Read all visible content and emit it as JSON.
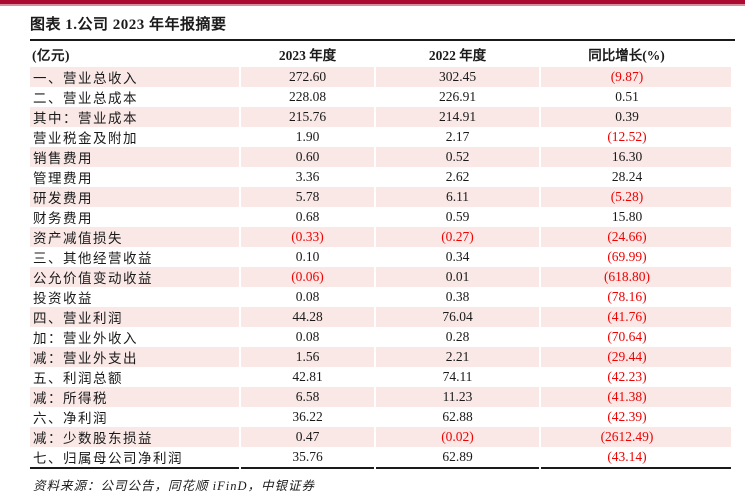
{
  "page": {
    "title": "图表 1.公司 2023 年年报摘要",
    "source_note": "资料来源：公司公告，同花顺 iFinD，中银证券"
  },
  "colors": {
    "accent_bar": "#AC0B31",
    "row_pink": "#F9E8E6",
    "negative_red": "#EE0202",
    "text_black": "#1A1A1A"
  },
  "table": {
    "headers": [
      "(亿元)",
      "2023 年度",
      "2022 年度",
      "同比增长(%)"
    ],
    "rows": [
      {
        "label": "一、营业总收入",
        "v2023": "272.60",
        "v2022": "302.45",
        "yoy": "(9.87)"
      },
      {
        "label": "二、营业总成本",
        "v2023": "228.08",
        "v2022": "226.91",
        "yoy": "0.51"
      },
      {
        "label": "其中：营业成本",
        "v2023": "215.76",
        "v2022": "214.91",
        "yoy": "0.39"
      },
      {
        "label": "营业税金及附加",
        "v2023": "1.90",
        "v2022": "2.17",
        "yoy": "(12.52)"
      },
      {
        "label": "销售费用",
        "v2023": "0.60",
        "v2022": "0.52",
        "yoy": "16.30"
      },
      {
        "label": "管理费用",
        "v2023": "3.36",
        "v2022": "2.62",
        "yoy": "28.24"
      },
      {
        "label": "研发费用",
        "v2023": "5.78",
        "v2022": "6.11",
        "yoy": "(5.28)"
      },
      {
        "label": "财务费用",
        "v2023": "0.68",
        "v2022": "0.59",
        "yoy": "15.80"
      },
      {
        "label": "资产减值损失",
        "v2023": "(0.33)",
        "v2022": "(0.27)",
        "yoy": "(24.66)"
      },
      {
        "label": "三、其他经营收益",
        "v2023": "0.10",
        "v2022": "0.34",
        "yoy": "(69.99)"
      },
      {
        "label": "公允价值变动收益",
        "v2023": "(0.06)",
        "v2022": "0.01",
        "yoy": "(618.80)"
      },
      {
        "label": "投资收益",
        "v2023": "0.08",
        "v2022": "0.38",
        "yoy": "(78.16)"
      },
      {
        "label": "四、营业利润",
        "v2023": "44.28",
        "v2022": "76.04",
        "yoy": "(41.76)"
      },
      {
        "label": "加：营业外收入",
        "v2023": "0.08",
        "v2022": "0.28",
        "yoy": "(70.64)"
      },
      {
        "label": "减：营业外支出",
        "v2023": "1.56",
        "v2022": "2.21",
        "yoy": "(29.44)"
      },
      {
        "label": "五、利润总额",
        "v2023": "42.81",
        "v2022": "74.11",
        "yoy": "(42.23)"
      },
      {
        "label": "减：所得税",
        "v2023": "6.58",
        "v2022": "11.23",
        "yoy": "(41.38)"
      },
      {
        "label": "六、净利润",
        "v2023": "36.22",
        "v2022": "62.88",
        "yoy": "(42.39)"
      },
      {
        "label": "减：少数股东损益",
        "v2023": "0.47",
        "v2022": "(0.02)",
        "yoy": "(2612.49)"
      },
      {
        "label": "七、归属母公司净利润",
        "v2023": "35.76",
        "v2022": "62.89",
        "yoy": "(43.14)"
      }
    ]
  }
}
